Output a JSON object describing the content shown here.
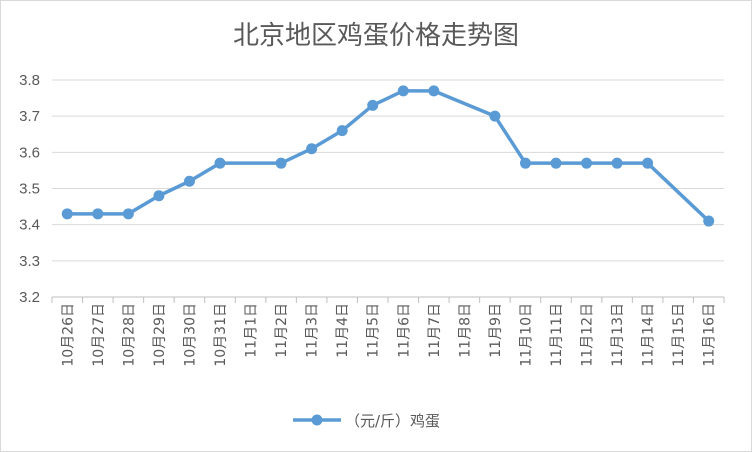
{
  "chart_data": {
    "type": "line",
    "title": "北京地区鸡蛋价格走势图",
    "xlabel": "",
    "ylabel": "",
    "ylim": [
      3.2,
      3.8
    ],
    "yticks": [
      "3.2",
      "3.3",
      "3.4",
      "3.5",
      "3.6",
      "3.7",
      "3.8"
    ],
    "grid": true,
    "legend_position": "bottom",
    "categories": [
      "10月26日",
      "10月27日",
      "10月28日",
      "10月29日",
      "10月30日",
      "10月31日",
      "11月1日",
      "11月2日",
      "11月3日",
      "11月4日",
      "11月5日",
      "11月6日",
      "11月7日",
      "11月8日",
      "11月9日",
      "11月10日",
      "11月11日",
      "11月12日",
      "11月13日",
      "11月14日",
      "11月15日",
      "11月16日"
    ],
    "series": [
      {
        "name": "（元/斤）鸡蛋",
        "color": "#5b9bd5",
        "values": [
          3.43,
          3.43,
          3.43,
          3.48,
          3.52,
          3.57,
          null,
          3.57,
          3.61,
          3.66,
          3.73,
          3.77,
          3.77,
          null,
          3.7,
          3.57,
          3.57,
          3.57,
          3.57,
          3.57,
          null,
          3.41
        ]
      }
    ]
  }
}
